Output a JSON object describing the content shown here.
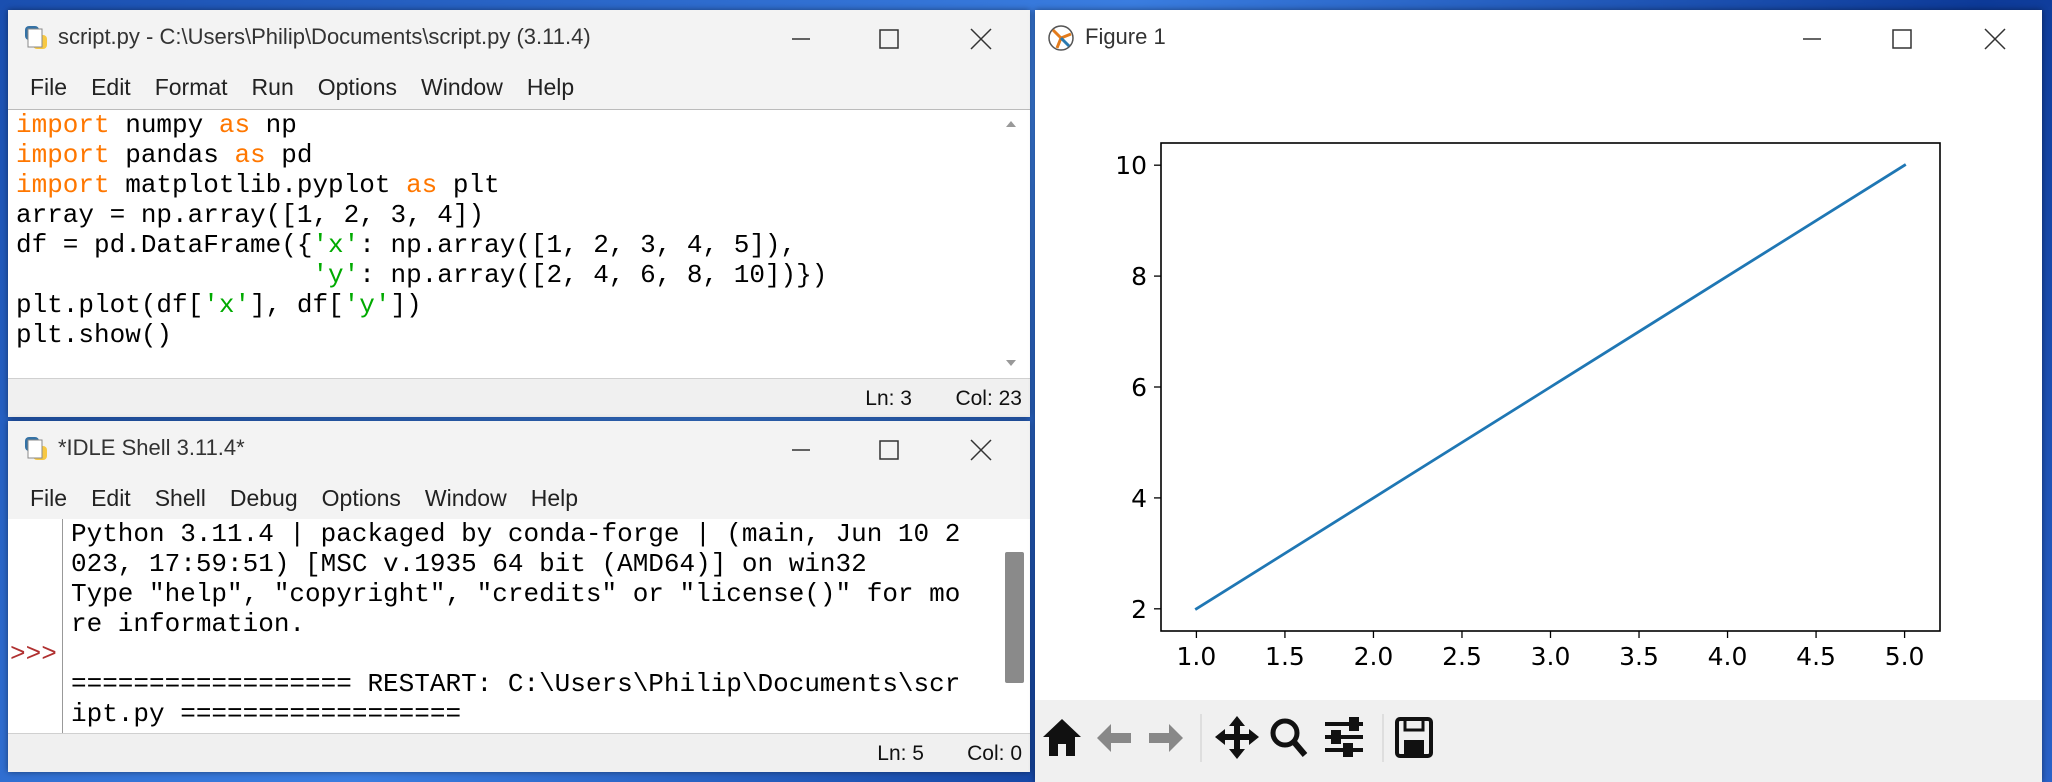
{
  "editor": {
    "title": "script.py - C:\\Users\\Philip\\Documents\\script.py (3.11.4)",
    "menu": [
      "File",
      "Edit",
      "Format",
      "Run",
      "Options",
      "Window",
      "Help"
    ],
    "lines": [
      [
        {
          "text": "import",
          "color": "#ff7700"
        },
        {
          "text": " numpy "
        },
        {
          "text": "as",
          "color": "#ff7700"
        },
        {
          "text": " np"
        }
      ],
      [
        {
          "text": "import",
          "color": "#ff7700"
        },
        {
          "text": " pandas "
        },
        {
          "text": "as",
          "color": "#ff7700"
        },
        {
          "text": " pd"
        }
      ],
      [
        {
          "text": "import",
          "color": "#ff7700"
        },
        {
          "text": " matplotlib.pyplot "
        },
        {
          "text": "as",
          "color": "#ff7700"
        },
        {
          "text": " plt"
        }
      ],
      [
        {
          "text": "array = np.array([1, 2, 3, 4])"
        }
      ],
      [
        {
          "text": "df = pd.DataFrame({"
        },
        {
          "text": "'x'",
          "color": "#00aa00"
        },
        {
          "text": ": np.array([1, 2, 3, 4, 5]),"
        }
      ],
      [
        {
          "text": "                   "
        },
        {
          "text": "'y'",
          "color": "#00aa00"
        },
        {
          "text": ": np.array([2, 4, 6, 8, 10])})"
        }
      ],
      [
        {
          "text": "plt.plot(df["
        },
        {
          "text": "'x'",
          "color": "#00aa00"
        },
        {
          "text": "], df["
        },
        {
          "text": "'y'",
          "color": "#00aa00"
        },
        {
          "text": "])"
        }
      ],
      [
        {
          "text": "plt.show()"
        }
      ]
    ],
    "status": {
      "line": "Ln: 3",
      "col": "Col: 23"
    }
  },
  "shell": {
    "title": "*IDLE Shell 3.11.4*",
    "menu": [
      "File",
      "Edit",
      "Shell",
      "Debug",
      "Options",
      "Window",
      "Help"
    ],
    "banner": [
      "Python 3.11.4 | packaged by conda-forge | (main, Jun 10 2",
      "023, 17:59:51) [MSC v.1935 64 bit (AMD64)] on win32",
      "Type \"help\", \"copyright\", \"credits\" or \"license()\" for mo",
      "re information."
    ],
    "prompt": ">>>",
    "restart": [
      "================== RESTART: C:\\Users\\Philip\\Documents\\scr",
      "ipt.py =================="
    ],
    "status": {
      "line": "Ln: 5",
      "col": "Col: 0"
    }
  },
  "figure": {
    "title": "Figure 1"
  },
  "chart_data": {
    "type": "line",
    "x": [
      1,
      2,
      3,
      4,
      5
    ],
    "values": [
      2,
      4,
      6,
      8,
      10
    ],
    "color": "#1f77b4",
    "xlim": [
      0.8,
      5.2
    ],
    "ylim": [
      1.6,
      10.4
    ],
    "xticks": [
      {
        "value": 1,
        "label": "1.0"
      },
      1.5,
      {
        "value": 2,
        "label": "2.0"
      },
      2.5,
      {
        "value": 3,
        "label": "3.0"
      },
      3.5,
      {
        "value": 4,
        "label": "4.0"
      },
      4.5,
      {
        "value": 5,
        "label": "5.0"
      }
    ],
    "yticks": [
      2,
      4,
      6,
      8,
      10
    ]
  }
}
